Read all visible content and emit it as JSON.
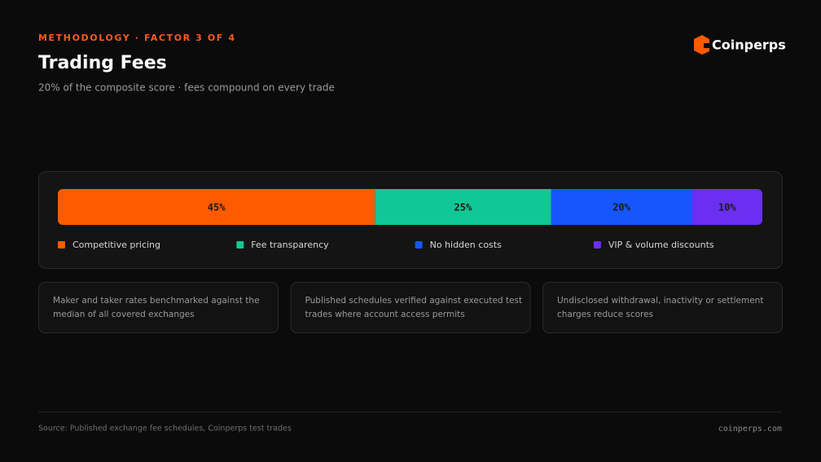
{
  "header": {
    "eyebrow": "METHODOLOGY · FACTOR 3 OF 4",
    "title": "Trading Fees",
    "subtitle": "20% of the composite score · fees compound on every trade",
    "brand": "Coinperps"
  },
  "chart_data": {
    "type": "bar",
    "stacked": true,
    "orientation": "horizontal",
    "series": [
      {
        "name": "Competitive pricing",
        "color": "#ff5a00",
        "values": [
          45
        ],
        "value_labels": [
          "45%"
        ]
      },
      {
        "name": "Fee transparency",
        "color": "#10c795",
        "values": [
          25
        ],
        "value_labels": [
          "25%"
        ]
      },
      {
        "name": "No hidden costs",
        "color": "#1556ff",
        "values": [
          20
        ],
        "value_labels": [
          "20%"
        ]
      },
      {
        "name": "VIP & volume discounts",
        "color": "#6a2ff0",
        "values": [
          10
        ],
        "value_labels": [
          "10%"
        ]
      }
    ]
  },
  "cards": [
    {
      "lines": [
        "Maker and taker rates benchmarked against the",
        "median of all covered exchanges"
      ]
    },
    {
      "lines": [
        "Published schedules verified against executed test",
        "trades where account access permits"
      ]
    },
    {
      "lines": [
        "Undisclosed withdrawal, inactivity or settlement",
        "charges reduce scores"
      ]
    }
  ],
  "footer": {
    "source": "Source: Published exchange fee schedules, Coinperps test trades",
    "site": "coinperps.com"
  }
}
